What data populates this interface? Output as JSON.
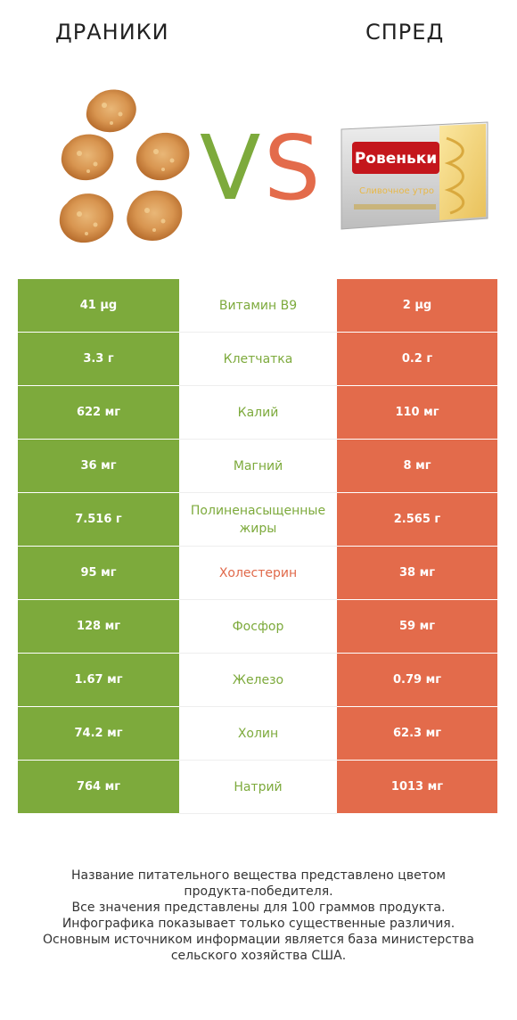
{
  "header": {
    "left_title": "ДРАНИКИ",
    "right_title": "СПРЕД",
    "vs_left": "V",
    "vs_right": "S"
  },
  "colors": {
    "winner_left": "#7daa3c",
    "winner_right": "#e36b4b"
  },
  "images": {
    "left": "potato-pancakes-image",
    "right": "spread-package-image",
    "package_brand": "Ровеньки",
    "package_label": "Сливочное утро"
  },
  "rows": [
    {
      "left": "41 µg",
      "label": "Витамин B9",
      "right": "2 µg",
      "winner": "left"
    },
    {
      "left": "3.3 г",
      "label": "Клетчатка",
      "right": "0.2 г",
      "winner": "left"
    },
    {
      "left": "622 мг",
      "label": "Калий",
      "right": "110 мг",
      "winner": "left"
    },
    {
      "left": "36 мг",
      "label": "Магний",
      "right": "8 мг",
      "winner": "left"
    },
    {
      "left": "7.516 г",
      "label": "Полиненасыщенные жиры",
      "right": "2.565 г",
      "winner": "left"
    },
    {
      "left": "95 мг",
      "label": "Холестерин",
      "right": "38 мг",
      "winner": "right"
    },
    {
      "left": "128 мг",
      "label": "Фосфор",
      "right": "59 мг",
      "winner": "left"
    },
    {
      "left": "1.67 мг",
      "label": "Железо",
      "right": "0.79 мг",
      "winner": "left"
    },
    {
      "left": "74.2 мг",
      "label": "Холин",
      "right": "62.3 мг",
      "winner": "left"
    },
    {
      "left": "764 мг",
      "label": "Натрий",
      "right": "1013 мг",
      "winner": "left"
    }
  ],
  "footer": {
    "line1": "Название питательного вещества представлено цветом",
    "line2": "продукта-победителя.",
    "line3": "Все значения представлены для 100 граммов продукта.",
    "line4": "Инфографика показывает только существенные различия.",
    "line5": "Основным источником информации является база министерства",
    "line6": "сельского хозяйства США."
  }
}
